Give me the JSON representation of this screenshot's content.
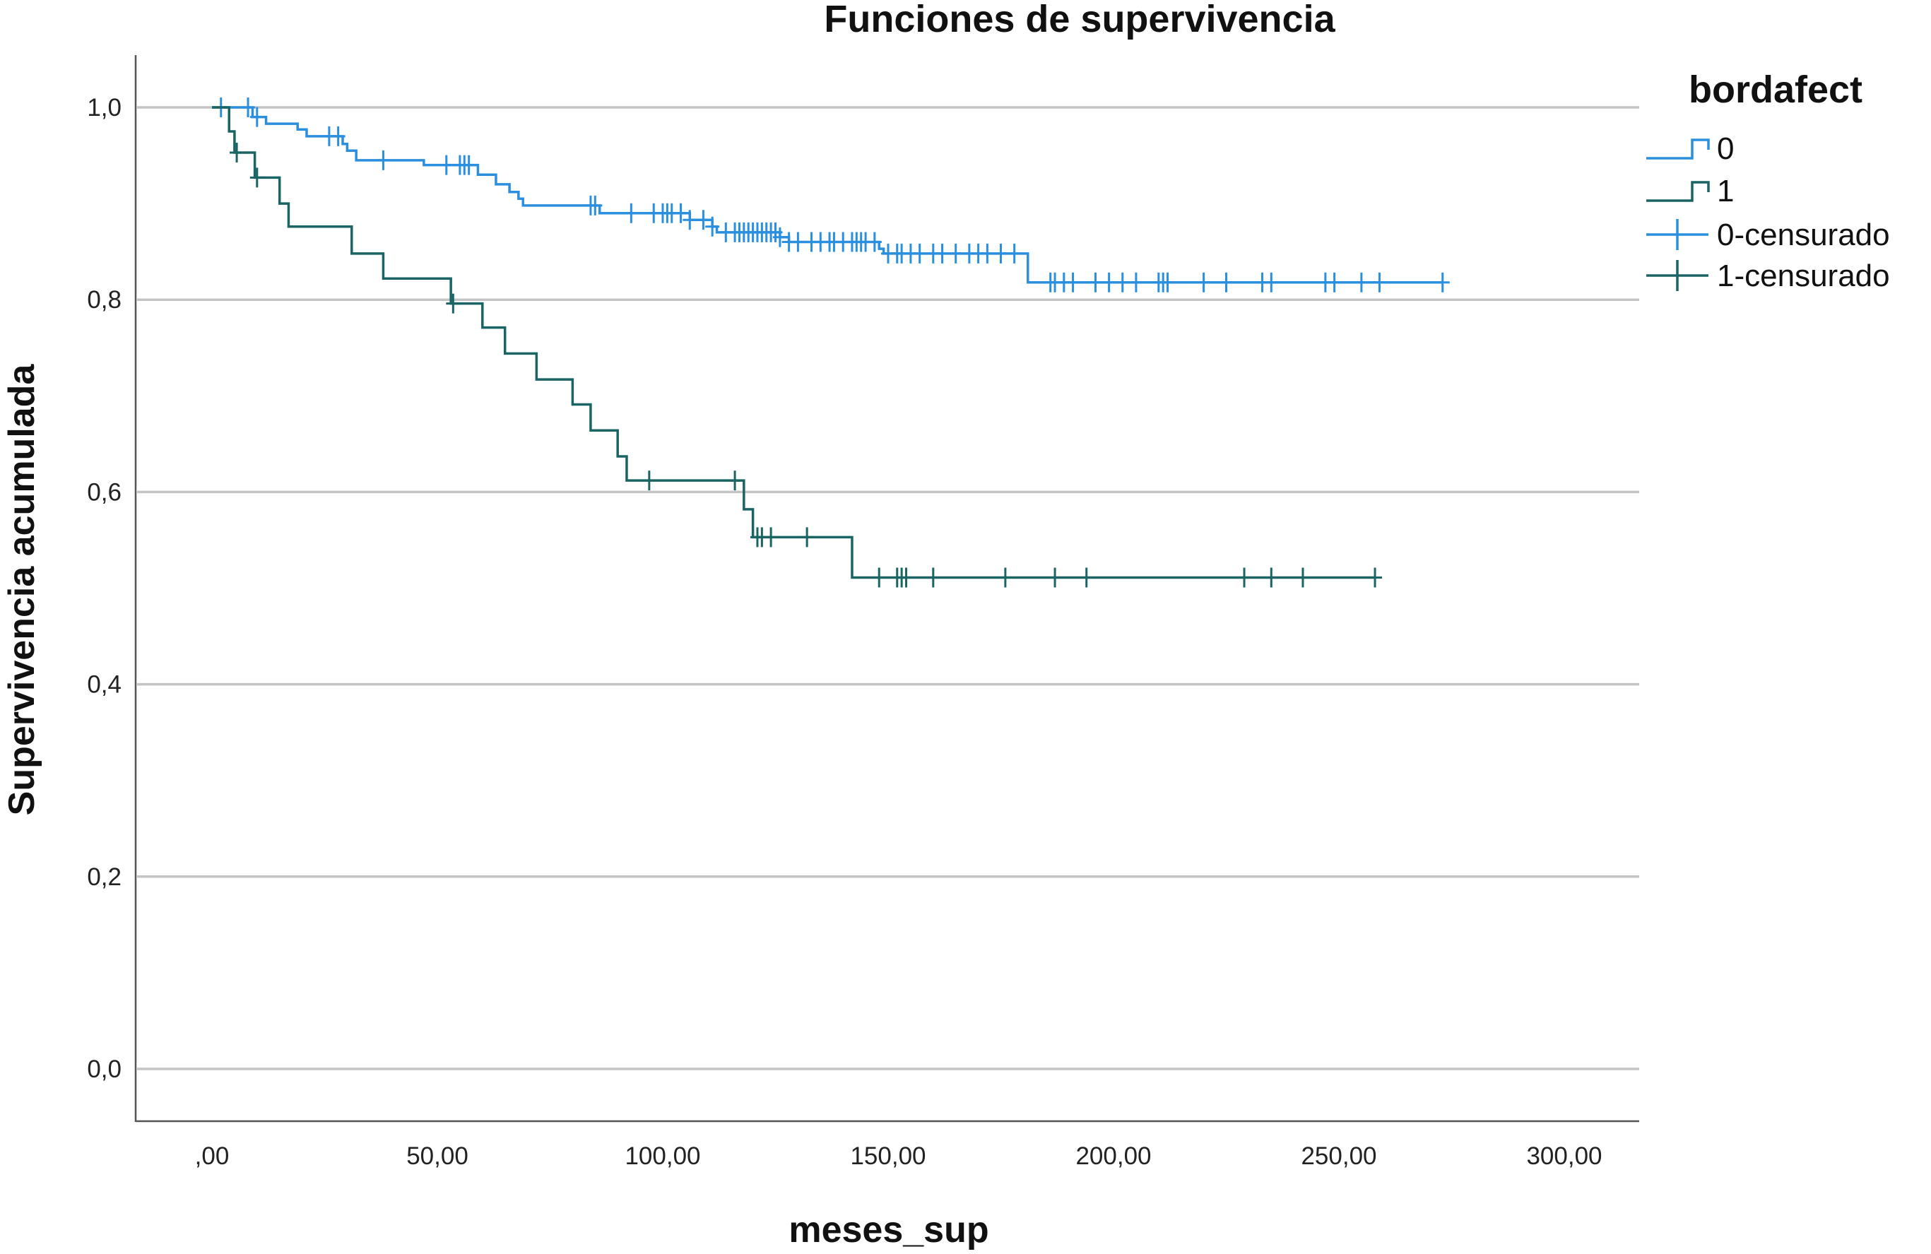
{
  "chart_data": {
    "type": "line",
    "subtype": "kaplan-meier step",
    "title": "Funciones de supervivencia",
    "xlabel": "meses_sup",
    "ylabel": "Supervivencia acumulada",
    "xlim": [
      0,
      300
    ],
    "ylim": [
      0,
      1
    ],
    "x_ticks": [
      ",00",
      "50,00",
      "100,00",
      "150,00",
      "200,00",
      "250,00",
      "300,00"
    ],
    "x_tick_values": [
      0,
      50,
      100,
      150,
      200,
      250,
      300
    ],
    "y_ticks": [
      "0,0",
      "0,2",
      "0,4",
      "0,6",
      "0,8",
      "1,0"
    ],
    "y_tick_values": [
      0,
      0.2,
      0.4,
      0.6,
      0.8,
      1.0
    ],
    "grid": "horizontal",
    "legend": {
      "title": "bordafect",
      "placement": "right",
      "entries": [
        "0",
        "1",
        "0-censurado",
        "1-censurado"
      ]
    },
    "series": [
      {
        "name": "0",
        "color": "#2a8fde",
        "steps": [
          [
            0,
            1.0
          ],
          [
            9,
            0.99
          ],
          [
            12,
            0.983
          ],
          [
            19,
            0.977
          ],
          [
            21,
            0.97
          ],
          [
            29,
            0.962
          ],
          [
            30,
            0.955
          ],
          [
            32,
            0.945
          ],
          [
            47,
            0.94
          ],
          [
            59,
            0.93
          ],
          [
            63,
            0.92
          ],
          [
            66,
            0.912
          ],
          [
            68,
            0.905
          ],
          [
            69,
            0.898
          ],
          [
            86,
            0.89
          ],
          [
            106,
            0.883
          ],
          [
            111,
            0.876
          ],
          [
            112,
            0.87
          ],
          [
            126,
            0.865
          ],
          [
            128,
            0.86
          ],
          [
            148,
            0.853
          ],
          [
            149,
            0.848
          ],
          [
            181,
            0.818
          ]
        ],
        "end": 273,
        "censored": [
          2,
          8,
          10,
          26,
          28,
          38,
          52,
          55,
          56,
          57,
          84,
          85,
          93,
          98,
          100,
          101,
          102,
          104,
          106,
          109,
          111,
          114,
          116,
          117,
          118,
          119,
          120,
          121,
          122,
          123,
          124,
          125,
          126,
          128,
          130,
          133,
          135,
          137,
          138,
          140,
          142,
          143,
          144,
          145,
          147,
          150,
          152,
          153,
          155,
          157,
          160,
          162,
          165,
          168,
          170,
          172,
          175,
          178,
          186,
          187,
          189,
          191,
          196,
          199,
          202,
          205,
          210,
          211,
          212,
          220,
          225,
          233,
          235,
          247,
          249,
          255,
          259,
          273
        ]
      },
      {
        "name": "1",
        "color": "#1b6464",
        "steps": [
          [
            0,
            1.0
          ],
          [
            3.8,
            0.975
          ],
          [
            5,
            0.953
          ],
          [
            9.5,
            0.927
          ],
          [
            15,
            0.9
          ],
          [
            17,
            0.876
          ],
          [
            31,
            0.848
          ],
          [
            38,
            0.822
          ],
          [
            53,
            0.796
          ],
          [
            60,
            0.771
          ],
          [
            65,
            0.744
          ],
          [
            72,
            0.717
          ],
          [
            80,
            0.691
          ],
          [
            84,
            0.664
          ],
          [
            90,
            0.637
          ],
          [
            92,
            0.612
          ],
          [
            118,
            0.582
          ],
          [
            120,
            0.553
          ],
          [
            142,
            0.511
          ]
        ],
        "end": 258,
        "censored": [
          5.5,
          10,
          53.5,
          97,
          116,
          121,
          122,
          124,
          132,
          148,
          152,
          153,
          154,
          160,
          176,
          187,
          194,
          229,
          235,
          242,
          258
        ]
      }
    ]
  }
}
